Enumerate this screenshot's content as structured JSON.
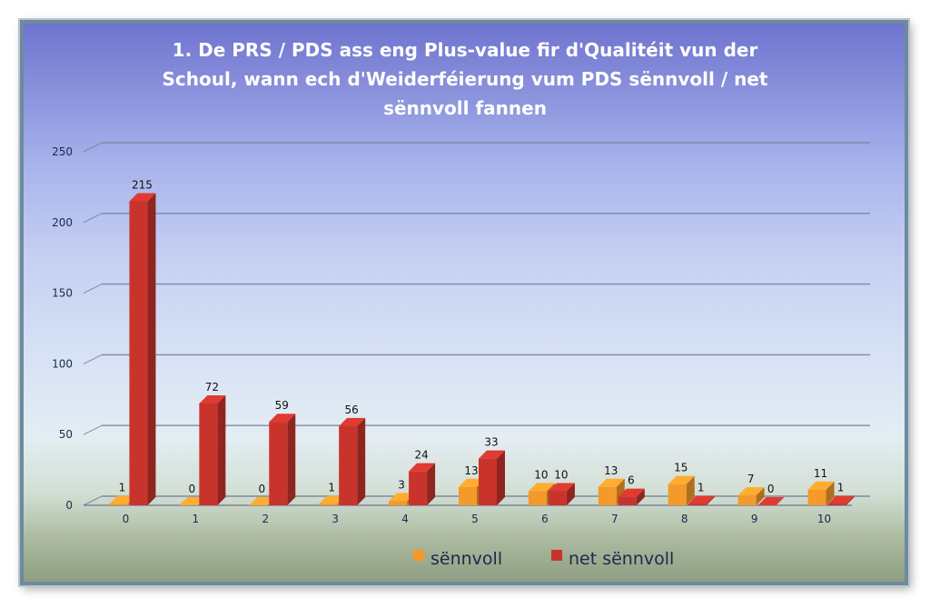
{
  "chart_data": {
    "type": "bar",
    "title": "1. De PRS / PDS ass eng Plus-value fir d'Qualitéit vun der Schoul, wann ech d'Weiderféierung vum PDS sënnvoll / net sënnvoll fannen",
    "title_lines": [
      "1. De PRS / PDS ass eng Plus-value fir d'Qualitéit vun der",
      "Schoul, wann ech d'Weiderféierung vum PDS sënnvoll / net",
      "sënnvoll fannen"
    ],
    "categories": [
      "0",
      "1",
      "2",
      "3",
      "4",
      "5",
      "6",
      "7",
      "8",
      "9",
      "10"
    ],
    "series": [
      {
        "name": "sënnvoll",
        "values": [
          1,
          0,
          0,
          1,
          3,
          13,
          10,
          13,
          15,
          7,
          11
        ],
        "color": "#f39a2b"
      },
      {
        "name": "net sënnvoll",
        "values": [
          215,
          72,
          59,
          56,
          24,
          33,
          10,
          6,
          1,
          0,
          1
        ],
        "color": "#c8342c"
      }
    ],
    "ylim": [
      0,
      250
    ],
    "yticks": [
      0,
      50,
      100,
      150,
      200,
      250
    ],
    "grid": true,
    "legend_position": "bottom",
    "style": "3d-clustered-column"
  }
}
